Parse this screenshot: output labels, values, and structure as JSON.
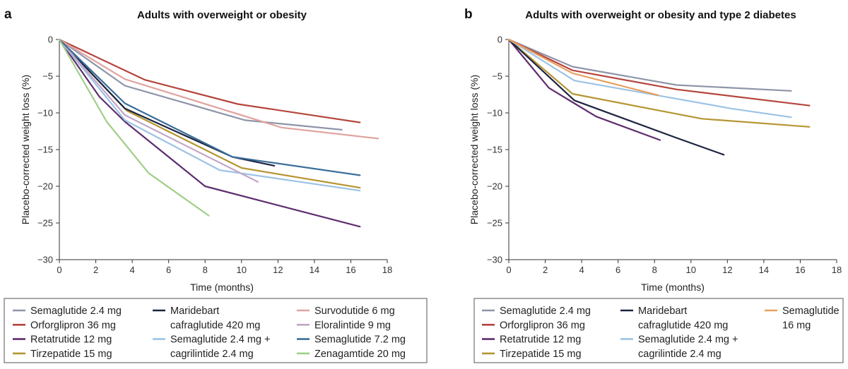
{
  "chart_data": [
    {
      "type": "line",
      "panel": "a",
      "title": "Adults with overweight or obesity",
      "xlabel": "Time (months)",
      "ylabel": "Placebo-corrected weight loss (%)",
      "xlim": [
        0,
        18
      ],
      "ylim": [
        -30,
        0
      ],
      "xticks": [
        0,
        2,
        4,
        6,
        8,
        10,
        12,
        14,
        16,
        18
      ],
      "yticks": [
        0,
        -5,
        -10,
        -15,
        -20,
        -25,
        -30
      ],
      "grid": false,
      "legend_position": "bottom",
      "series": [
        {
          "name": "Semaglutide 2.4 mg",
          "color": "#8e95a8",
          "x": [
            0,
            3.6,
            10.2,
            15.5
          ],
          "y": [
            0,
            -6.3,
            -11,
            -12.3
          ]
        },
        {
          "name": "Orforglipron 36 mg",
          "color": "#b5453c",
          "x": [
            0,
            4.7,
            9.8,
            16.5
          ],
          "y": [
            0,
            -5.5,
            -8.8,
            -11.3
          ]
        },
        {
          "name": "Retatrutide 12 mg",
          "color": "#5e2d6e",
          "x": [
            0,
            2.2,
            3.6,
            8,
            16.5
          ],
          "y": [
            0,
            -7.8,
            -11.2,
            -20,
            -25.5
          ]
        },
        {
          "name": "Tirzepatide 15 mg",
          "color": "#b59632",
          "x": [
            0,
            3.7,
            10,
            16.5
          ],
          "y": [
            0,
            -9.7,
            -17.5,
            -20.2
          ]
        },
        {
          "name": "Maridebart cafraglutide 420 mg",
          "color": "#1c2440",
          "x": [
            0,
            3.6,
            9.5,
            11.8
          ],
          "y": [
            0,
            -9.4,
            -16,
            -17.2
          ]
        },
        {
          "name": "Semaglutide 2.4 mg + cagrilintide 2.4 mg",
          "color": "#9cc3e4",
          "x": [
            0,
            3.6,
            8.8,
            16.5
          ],
          "y": [
            0,
            -11,
            -17.8,
            -20.6
          ]
        },
        {
          "name": "Survodutide 6 mg",
          "color": "#e0a3a0",
          "x": [
            0,
            3.6,
            12.2,
            17.5
          ],
          "y": [
            0,
            -5.4,
            -12,
            -13.5
          ]
        },
        {
          "name": "Eloralintide 9 mg",
          "color": "#c3a4c8",
          "x": [
            0,
            3.6,
            10.9
          ],
          "y": [
            0,
            -10.3,
            -19.4
          ]
        },
        {
          "name": "Semaglutide 7.2 mg",
          "color": "#3a6e9a",
          "x": [
            0,
            3.6,
            9.5,
            16.5
          ],
          "y": [
            0,
            -8.7,
            -16,
            -18.5
          ]
        },
        {
          "name": "Zenagamtide 20 mg",
          "color": "#9fcf88",
          "x": [
            0,
            2.6,
            4.9,
            8.2
          ],
          "y": [
            0,
            -11.2,
            -18.2,
            -24
          ]
        }
      ]
    },
    {
      "type": "line",
      "panel": "b",
      "title": "Adults with overweight or obesity and type 2 diabetes",
      "xlabel": "Time (months)",
      "ylabel": "Placebo-corrected weight loss (%)",
      "xlim": [
        0,
        18
      ],
      "ylim": [
        -30,
        0
      ],
      "xticks": [
        0,
        2,
        4,
        6,
        8,
        10,
        12,
        14,
        16,
        18
      ],
      "yticks": [
        0,
        -5,
        -10,
        -15,
        -20,
        -25,
        -30
      ],
      "grid": false,
      "legend_position": "bottom",
      "series": [
        {
          "name": "Semaglutide 2.4 mg",
          "color": "#8e95a8",
          "x": [
            0,
            3.5,
            9.2,
            15.5
          ],
          "y": [
            0,
            -3.7,
            -6.2,
            -7
          ]
        },
        {
          "name": "Orforglipron 36 mg",
          "color": "#b5453c",
          "x": [
            0,
            3.5,
            9.2,
            16.5
          ],
          "y": [
            0,
            -4.2,
            -6.8,
            -9
          ]
        },
        {
          "name": "Retatrutide 12 mg",
          "color": "#5e2d6e",
          "x": [
            0,
            2.2,
            3.6,
            4.8,
            8.3
          ],
          "y": [
            0,
            -6.6,
            -8.7,
            -10.5,
            -13.7
          ]
        },
        {
          "name": "Tirzepatide 15 mg",
          "color": "#b59632",
          "x": [
            0,
            3.5,
            10.6,
            16.5
          ],
          "y": [
            0,
            -7.4,
            -10.8,
            -11.9
          ]
        },
        {
          "name": "Maridebart cafraglutide 420 mg",
          "color": "#1c2440",
          "x": [
            0,
            3.6,
            9.2,
            11.8
          ],
          "y": [
            0,
            -8.3,
            -13.4,
            -15.7
          ]
        },
        {
          "name": "Semaglutide 2.4 mg + cagrilintide 2.4 mg",
          "color": "#9cc3e4",
          "x": [
            0,
            3.6,
            12.2,
            15.5
          ],
          "y": [
            0,
            -5.6,
            -9.4,
            -10.6
          ]
        },
        {
          "name": "Semaglutide 16 mg",
          "color": "#e8a060",
          "x": [
            0,
            3.5,
            8.2
          ],
          "y": [
            0,
            -4.6,
            -7.6
          ]
        }
      ]
    }
  ],
  "legends": [
    {
      "columns": [
        [
          {
            "color": "#8e95a8",
            "lines": [
              "Semaglutide 2.4 mg"
            ]
          },
          {
            "color": "#b5453c",
            "lines": [
              "Orforglipron 36 mg"
            ]
          },
          {
            "color": "#5e2d6e",
            "lines": [
              "Retatrutide 12 mg"
            ]
          },
          {
            "color": "#b59632",
            "lines": [
              "Tirzepatide 15 mg"
            ]
          }
        ],
        [
          {
            "color": "#1c2440",
            "lines": [
              "Maridebart",
              "cafraglutide 420 mg"
            ]
          },
          {
            "color": "#9cc3e4",
            "lines": [
              "Semaglutide 2.4 mg +",
              "cagrilintide 2.4 mg"
            ]
          }
        ],
        [
          {
            "color": "#e0a3a0",
            "lines": [
              "Survodutide 6 mg"
            ]
          },
          {
            "color": "#c3a4c8",
            "lines": [
              "Eloralintide 9 mg"
            ]
          },
          {
            "color": "#3a6e9a",
            "lines": [
              "Semaglutide 7.2 mg"
            ]
          },
          {
            "color": "#9fcf88",
            "lines": [
              "Zenagamtide 20 mg"
            ]
          }
        ]
      ]
    },
    {
      "columns": [
        [
          {
            "color": "#8e95a8",
            "lines": [
              "Semaglutide 2.4 mg"
            ]
          },
          {
            "color": "#b5453c",
            "lines": [
              "Orforglipron 36 mg"
            ]
          },
          {
            "color": "#5e2d6e",
            "lines": [
              "Retatrutide 12 mg"
            ]
          },
          {
            "color": "#b59632",
            "lines": [
              "Tirzepatide 15 mg"
            ]
          }
        ],
        [
          {
            "color": "#1c2440",
            "lines": [
              "Maridebart",
              "cafraglutide 420 mg"
            ]
          },
          {
            "color": "#9cc3e4",
            "lines": [
              "Semaglutide 2.4 mg +",
              "cagrilintide 2.4 mg"
            ]
          }
        ],
        [
          {
            "color": "#e8a060",
            "lines": [
              "Semaglutide",
              "16 mg"
            ]
          }
        ]
      ]
    }
  ]
}
